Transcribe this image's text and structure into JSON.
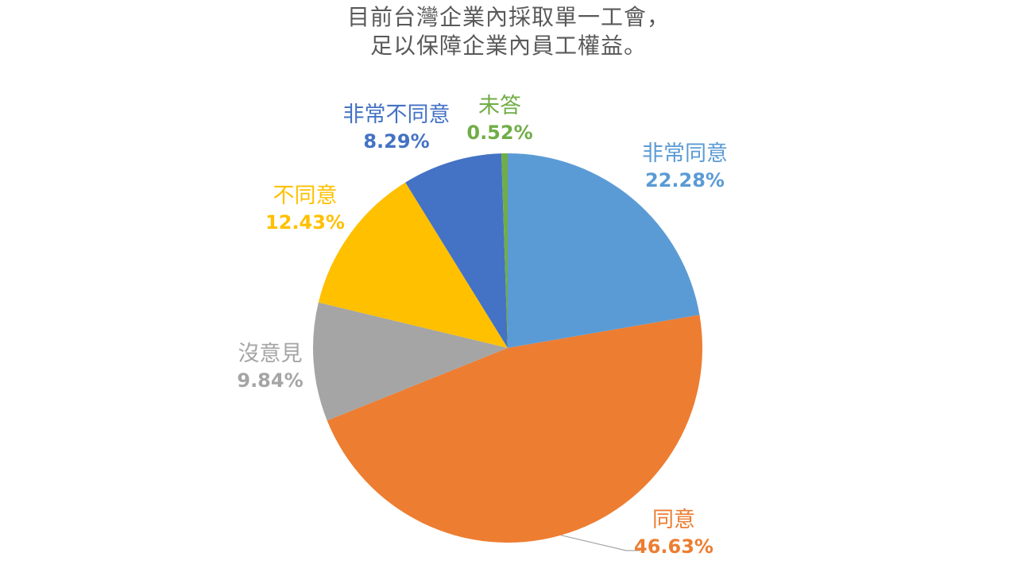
{
  "chart_data": {
    "type": "pie",
    "title_lines": [
      "目前台灣企業內採取單一工會，",
      "足以保障企業內員工權益。"
    ],
    "title_color": "#595959",
    "slices": [
      {
        "label": "非常同意",
        "value": 22.28,
        "display": "22.28%",
        "color": "#5B9BD5"
      },
      {
        "label": "同意",
        "value": 46.63,
        "display": "46.63%",
        "color": "#ED7D31"
      },
      {
        "label": "沒意見",
        "value": 9.84,
        "display": "9.84%",
        "color": "#A5A5A5"
      },
      {
        "label": "不同意",
        "value": 12.43,
        "display": "12.43%",
        "color": "#FFC000"
      },
      {
        "label": "非常不同意",
        "value": 8.29,
        "display": "8.29%",
        "color": "#4472C4"
      },
      {
        "label": "未答",
        "value": 0.52,
        "display": "0.52%",
        "color": "#70AD47"
      }
    ],
    "start_angle_deg": 0,
    "direction": "clockwise",
    "legend_position": "none",
    "labels_style": "outside, category name + percentage, colored like slice",
    "leader_line_color": "#A6A6A6",
    "background": "#FFFFFF"
  }
}
